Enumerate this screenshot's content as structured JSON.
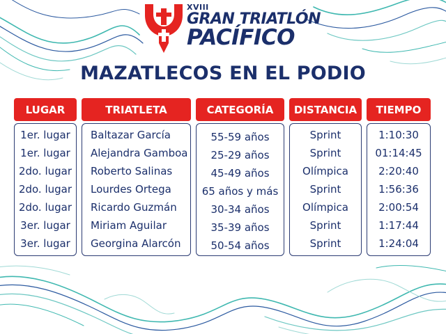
{
  "logo": {
    "edition": "XVIII",
    "line1": "GRAN TRIATLÓN",
    "line2": "PACÍFICO"
  },
  "title": "MAZATLECOS EN EL PODIO",
  "table": {
    "headers": [
      "LUGAR",
      "TRIATLETA",
      "CATEGORÍA",
      "DISTANCIA",
      "TIEMPO"
    ],
    "rows": [
      [
        "1er. lugar",
        "Baltazar García",
        "55-59 años",
        "Sprint",
        "1:10:30"
      ],
      [
        "1er. lugar",
        "Alejandra Gamboa",
        "25-29 años",
        "Sprint",
        "01:14:45"
      ],
      [
        "2do. lugar",
        "Roberto Salinas",
        "45-49 años",
        "Olímpica",
        "2:20:40"
      ],
      [
        "2do. lugar",
        "Lourdes Ortega",
        "65 años y más",
        "Sprint",
        "1:56:36"
      ],
      [
        "2do. lugar",
        "Ricardo Guzmán",
        "30-34 años",
        "Olímpica",
        "2:00:54"
      ],
      [
        "3er. lugar",
        "Miriam Aguilar",
        "35-39 años",
        "Sprint",
        "1:17:44"
      ],
      [
        "3er. lugar",
        "Georgina Alarcón",
        "50-54 años",
        "Sprint",
        "1:24:04"
      ]
    ]
  },
  "colors": {
    "red": "#e52421",
    "navy": "#1b2f6b",
    "teal": "#3fb8b0",
    "blue": "#2c5aa0"
  },
  "icons": [
    "triathlon-logo-mark",
    "wave-pattern"
  ]
}
